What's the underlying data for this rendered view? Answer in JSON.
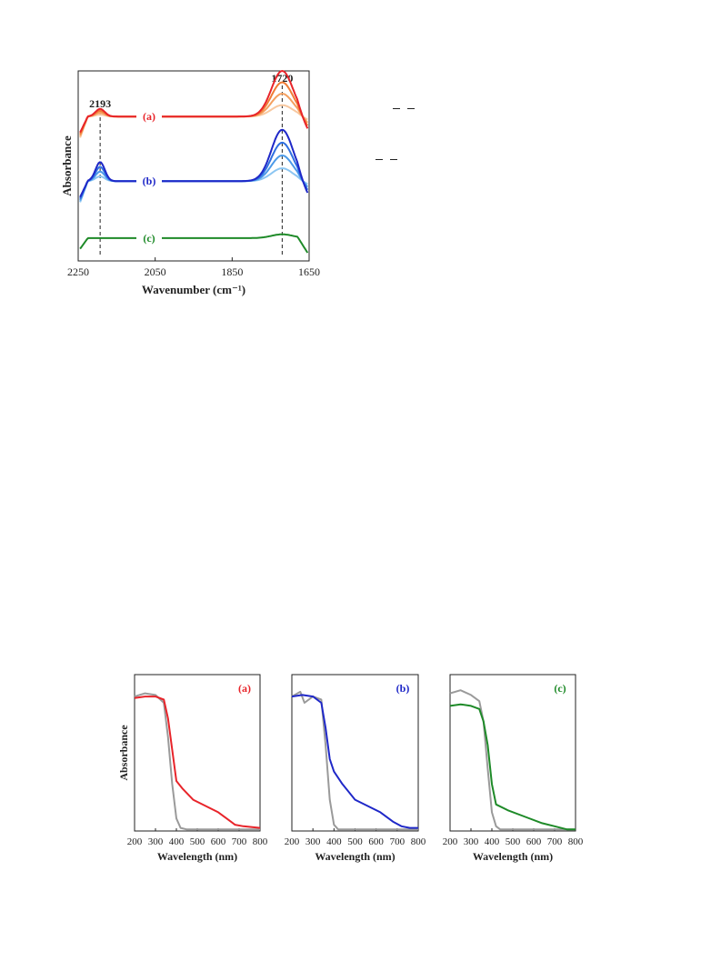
{
  "colors": {
    "red": "#e8242a",
    "orange1": "#f07c35",
    "orange2": "#f4a060",
    "orange3": "#f8c8a0",
    "blue": "#1f28c8",
    "blue1": "#2f6fe0",
    "blue2": "#4c9ae8",
    "blue3": "#8cc6f2",
    "green": "#1e8a28",
    "gray": "#9a9a9a",
    "axis": "#222222"
  },
  "chart_data": [
    {
      "type": "line",
      "ylabel": "Absorbance",
      "xlabel": "Wavenumber (cm⁻¹)",
      "xlim": [
        2250,
        1650
      ],
      "x_reversed": true,
      "x_ticks": [
        "2250",
        "2050",
        "1850",
        "1650"
      ],
      "x_tick_values": [
        2250,
        2050,
        1850,
        1650
      ],
      "annotations": [
        {
          "text": "2193",
          "x": 2193
        },
        {
          "text": "1720",
          "x": 1720
        }
      ],
      "series": [
        {
          "label": "(a)",
          "color": "red",
          "baseline": 0.76,
          "peak2193": 0.04,
          "peak1720": 0.24,
          "shades": [
            "orange3",
            "orange2",
            "orange1",
            "red"
          ]
        },
        {
          "label": "(b)",
          "color": "blue",
          "baseline": 0.42,
          "peak2193": 0.1,
          "peak1720": 0.27,
          "shades": [
            "blue3",
            "blue2",
            "blue1",
            "blue"
          ]
        },
        {
          "label": "(c)",
          "color": "green",
          "baseline": 0.12,
          "peak2193": 0.0,
          "peak1720": 0.02,
          "shades": [
            "green"
          ]
        }
      ]
    },
    {
      "type": "line",
      "panel": "(a)",
      "ylabel": "Absorbance",
      "xlabel": "Wavelength (nm)",
      "xlim": [
        200,
        800
      ],
      "x_ticks": [
        "200",
        "300",
        "400",
        "500",
        "600",
        "700",
        "800"
      ],
      "series": [
        {
          "color": "gray",
          "x": [
            200,
            250,
            300,
            340,
            360,
            380,
            400,
            420,
            450,
            800
          ],
          "y": [
            0.86,
            0.88,
            0.87,
            0.82,
            0.6,
            0.3,
            0.08,
            0.02,
            0.01,
            0.01
          ]
        },
        {
          "color": "red",
          "x": [
            200,
            250,
            300,
            340,
            360,
            380,
            400,
            430,
            480,
            540,
            600,
            640,
            680,
            720,
            800
          ],
          "y": [
            0.85,
            0.86,
            0.86,
            0.84,
            0.72,
            0.52,
            0.32,
            0.27,
            0.2,
            0.16,
            0.12,
            0.08,
            0.04,
            0.03,
            0.02
          ]
        }
      ]
    },
    {
      "type": "line",
      "panel": "(b)",
      "ylabel": "Absorbance",
      "xlabel": "Wavelength (nm)",
      "xlim": [
        200,
        800
      ],
      "x_ticks": [
        "200",
        "300",
        "400",
        "500",
        "600",
        "700",
        "800"
      ],
      "series": [
        {
          "color": "gray",
          "x": [
            200,
            240,
            260,
            300,
            340,
            360,
            380,
            400,
            420,
            800
          ],
          "y": [
            0.86,
            0.89,
            0.82,
            0.86,
            0.84,
            0.55,
            0.2,
            0.04,
            0.01,
            0.01
          ]
        },
        {
          "color": "blue",
          "x": [
            200,
            250,
            300,
            340,
            360,
            380,
            400,
            440,
            500,
            560,
            620,
            680,
            720,
            760,
            800
          ],
          "y": [
            0.86,
            0.87,
            0.86,
            0.82,
            0.66,
            0.46,
            0.38,
            0.3,
            0.2,
            0.16,
            0.12,
            0.06,
            0.03,
            0.02,
            0.02
          ]
        }
      ]
    },
    {
      "type": "line",
      "panel": "(c)",
      "ylabel": "Absorbance",
      "xlabel": "Wavelength (nm)",
      "xlim": [
        200,
        800
      ],
      "x_ticks": [
        "200",
        "300",
        "400",
        "500",
        "600",
        "700",
        "800"
      ],
      "series": [
        {
          "color": "gray",
          "x": [
            200,
            250,
            300,
            340,
            360,
            380,
            400,
            420,
            440,
            800
          ],
          "y": [
            0.88,
            0.9,
            0.87,
            0.83,
            0.7,
            0.4,
            0.12,
            0.03,
            0.01,
            0.01
          ]
        },
        {
          "color": "green",
          "x": [
            200,
            250,
            300,
            340,
            360,
            380,
            400,
            420,
            480,
            560,
            640,
            700,
            760,
            800
          ],
          "y": [
            0.8,
            0.81,
            0.8,
            0.78,
            0.7,
            0.55,
            0.3,
            0.17,
            0.13,
            0.09,
            0.05,
            0.03,
            0.01,
            0.01
          ]
        }
      ]
    }
  ]
}
